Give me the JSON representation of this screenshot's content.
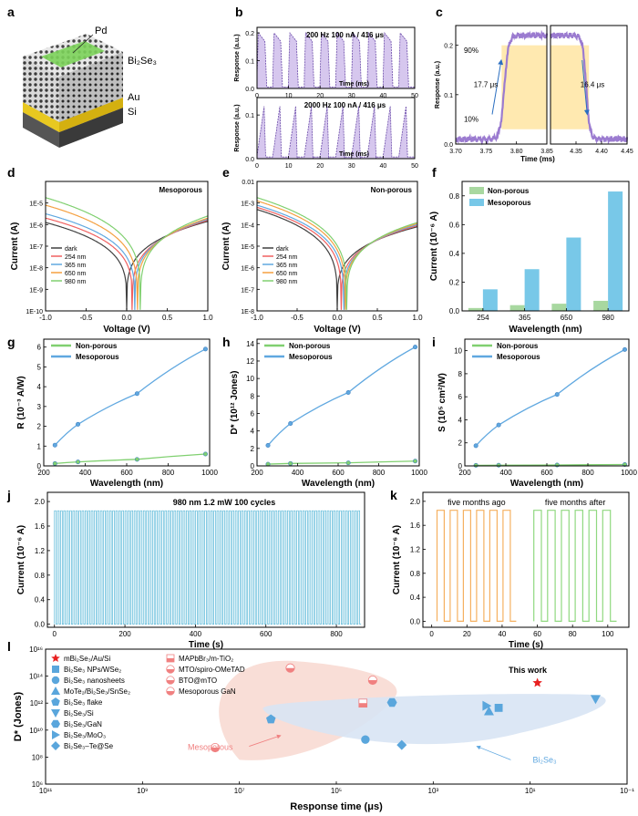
{
  "panel_letters": [
    "a",
    "b",
    "c",
    "d",
    "e",
    "f",
    "g",
    "h",
    "i",
    "j",
    "k",
    "l"
  ],
  "colors": {
    "purple": "#9B7BD0",
    "purple_fill": "#C8B4E8",
    "dark": "#404040",
    "red": "#F06060",
    "blue": "#60A8E0",
    "orange": "#F5A040",
    "green": "#80D070",
    "cyan_bar": "#78C8E8",
    "lightgreen_bar": "#A8D8A0",
    "k_orange": "#F5B060",
    "k_green": "#90D880",
    "pink_region": "#F8D8D0",
    "blue_region": "#D8E4F4",
    "star": "#E82020",
    "band": "#FFE9B0"
  },
  "panel_a": {
    "labels": {
      "pd": "Pd",
      "bi2se3": "Bi₂Se₃",
      "au": "Au",
      "si": "Si"
    }
  },
  "chart_data": [
    {
      "id": "b-top",
      "type": "line",
      "annotation": "200 Hz   100 nA / 416 μs",
      "xlabel": "Time (ms)",
      "ylabel": "Response (a.u.)",
      "xlim": [
        0,
        50
      ],
      "ylim": [
        0,
        0.22
      ],
      "xticks": [
        0,
        10,
        20,
        30,
        40,
        50
      ],
      "yticks": [
        0.0,
        0.1,
        0.2
      ],
      "ytick_labels": [
        "0.0",
        "0.1",
        "0.2"
      ],
      "pulse_period_ms": 5,
      "pulse_width_ms": 2.5,
      "amplitude": 0.2
    },
    {
      "id": "b-bottom",
      "type": "line",
      "annotation": "2000 Hz   100 nA / 416 μs",
      "xlabel": "Time (ms)",
      "ylabel": "Response (a.u.)",
      "xlim": [
        0,
        5
      ],
      "ylim": [
        0,
        0.14
      ],
      "xticks": [
        0,
        1,
        2,
        3,
        4,
        5
      ],
      "xtick_labels": [
        "0",
        "10",
        "20",
        "30",
        "40",
        "50"
      ],
      "yticks": [
        0.0,
        0.1
      ],
      "ytick_labels": [
        "0.0",
        "0.1"
      ],
      "pulse_period_ms": 0.5,
      "amplitude": 0.12
    },
    {
      "id": "c",
      "type": "line",
      "xlabel": "Time (ms)",
      "ylabel": "Response (a.u.)",
      "ylim": [
        0,
        0.24
      ],
      "yticks": [
        0.0,
        0.1,
        0.2
      ],
      "ytick_labels": [
        "0.0",
        "0.1",
        "0.2"
      ],
      "left": {
        "xlim": [
          3.7,
          3.85
        ],
        "xticks": [
          "3.70",
          "3.75",
          "3.80",
          "3.85"
        ],
        "rise_us": "17.7 μs",
        "edge_ms": 3.78
      },
      "right": {
        "xlim": [
          4.3,
          4.45
        ],
        "xticks": [
          "4.35",
          "4.40",
          "4.45"
        ],
        "fall_us": "16.4 μs",
        "edge_ms": 4.37
      },
      "band_labels": [
        "90%",
        "10%"
      ],
      "low": 0.01,
      "high": 0.22
    },
    {
      "id": "d",
      "type": "line",
      "yscale": "log",
      "title": "Mesoporous",
      "xlabel": "Voltage (V)",
      "ylabel": "Current (A)",
      "xlim": [
        -1.0,
        1.0
      ],
      "ylim_exp": [
        -10,
        -4
      ],
      "xticks": [
        "-1.0",
        "-0.5",
        "0.0",
        "0.5",
        "1.0"
      ],
      "ytick_labels": [
        "1E-10",
        "1E-9",
        "1E-8",
        "1E-7",
        "1E-6",
        "1E-5"
      ],
      "series": [
        {
          "name": "dark",
          "color": "#404040",
          "zero_v": 0.0,
          "left_exp": -5.9,
          "right_exp": -5.85
        },
        {
          "name": "254 nm",
          "color": "#F06060",
          "zero_v": 0.07,
          "left_exp": -5.7,
          "right_exp": -5.8
        },
        {
          "name": "365 nm",
          "color": "#60A8E0",
          "zero_v": 0.1,
          "left_exp": -5.5,
          "right_exp": -5.75
        },
        {
          "name": "650 nm",
          "color": "#F5A040",
          "zero_v": 0.13,
          "left_exp": -5.1,
          "right_exp": -5.7
        },
        {
          "name": "980 nm",
          "color": "#80D070",
          "zero_v": 0.17,
          "left_exp": -4.75,
          "right_exp": -5.6
        }
      ]
    },
    {
      "id": "e",
      "type": "line",
      "yscale": "log",
      "title": "Non-porous",
      "xlabel": "Voltage (V)",
      "ylabel": "Current (A)",
      "xlim": [
        -1.0,
        1.0
      ],
      "ylim_exp": [
        -8,
        -2
      ],
      "xticks": [
        "-1.0",
        "-0.5",
        "0.0",
        "0.5",
        "1.0"
      ],
      "ytick_labels": [
        "1E-8",
        "1E-7",
        "1E-6",
        "1E-5",
        "1E-4",
        "1E-3",
        "0.01"
      ],
      "series": [
        {
          "name": "dark",
          "color": "#404040",
          "zero_v": 0.0,
          "left_exp": -3.3,
          "right_exp": -4.1
        },
        {
          "name": "254 nm",
          "color": "#F06060",
          "zero_v": 0.05,
          "left_exp": -3.2,
          "right_exp": -4.05
        },
        {
          "name": "365 nm",
          "color": "#60A8E0",
          "zero_v": 0.08,
          "left_exp": -3.1,
          "right_exp": -4.0
        },
        {
          "name": "650 nm",
          "color": "#F5A040",
          "zero_v": 0.1,
          "left_exp": -2.9,
          "right_exp": -3.95
        },
        {
          "name": "980 nm",
          "color": "#80D070",
          "zero_v": 0.12,
          "left_exp": -2.75,
          "right_exp": -3.9
        }
      ]
    },
    {
      "id": "f",
      "type": "bar",
      "xlabel": "Wavelength (nm)",
      "ylabel": "Current (10⁻⁶ A)",
      "categories": [
        "254",
        "365",
        "650",
        "980"
      ],
      "ylim": [
        0,
        0.9
      ],
      "yticks": [
        "0.0",
        "0.2",
        "0.4",
        "0.6",
        "0.8"
      ],
      "series": [
        {
          "name": "Non-porous",
          "color": "#A8D8A0",
          "values": [
            0.02,
            0.04,
            0.05,
            0.07
          ]
        },
        {
          "name": "Mesoporous",
          "color": "#78C8E8",
          "values": [
            0.15,
            0.29,
            0.51,
            0.83
          ]
        }
      ]
    },
    {
      "id": "g",
      "type": "line",
      "xlabel": "Wavelength (nm)",
      "ylabel": "R (10⁻³ A/W)",
      "x": [
        254,
        365,
        650,
        980
      ],
      "xlim": [
        200,
        1000
      ],
      "xticks": [
        "200",
        "400",
        "600",
        "800",
        "1000"
      ],
      "ylim": [
        0,
        6.4
      ],
      "yticks": [
        "0",
        "1",
        "2",
        "3",
        "4",
        "5",
        "6"
      ],
      "series": [
        {
          "name": "Non-porous",
          "color": "#80D070",
          "values": [
            0.12,
            0.2,
            0.33,
            0.6
          ]
        },
        {
          "name": "Mesoporous",
          "color": "#60A8E0",
          "values": [
            1.05,
            2.1,
            3.65,
            5.9
          ]
        }
      ]
    },
    {
      "id": "h",
      "type": "line",
      "xlabel": "Wavelength (nm)",
      "ylabel": "D* (10¹² Jones)",
      "x": [
        254,
        365,
        650,
        980
      ],
      "xlim": [
        200,
        1000
      ],
      "xticks": [
        "200",
        "400",
        "600",
        "800",
        "1000"
      ],
      "ylim": [
        0,
        14.5
      ],
      "yticks": [
        "0",
        "2",
        "4",
        "6",
        "8",
        "10",
        "12",
        "14"
      ],
      "series": [
        {
          "name": "Non-porous",
          "color": "#80D070",
          "values": [
            0.2,
            0.28,
            0.35,
            0.55
          ]
        },
        {
          "name": "Mesoporous",
          "color": "#60A8E0",
          "values": [
            2.35,
            4.85,
            8.4,
            13.6
          ]
        }
      ]
    },
    {
      "id": "i",
      "type": "line",
      "xlabel": "Wavelength (nm)",
      "ylabel": "S (10⁵ cm²/W)",
      "x": [
        254,
        365,
        650,
        980
      ],
      "xlim": [
        200,
        1000
      ],
      "xticks": [
        "200",
        "400",
        "600",
        "800",
        "1000"
      ],
      "ylim": [
        0,
        11
      ],
      "yticks": [
        "0",
        "2",
        "4",
        "6",
        "8",
        "10"
      ],
      "series": [
        {
          "name": "Non-porous",
          "color": "#80D070",
          "values": [
            0.05,
            0.06,
            0.08,
            0.12
          ]
        },
        {
          "name": "Mesoporous",
          "color": "#60A8E0",
          "values": [
            1.75,
            3.55,
            6.2,
            10.1
          ]
        }
      ]
    },
    {
      "id": "j",
      "type": "line",
      "annotation": "980 nm    1.2 mW    100 cycles",
      "xlabel": "Time (s)",
      "ylabel": "Current (10⁻⁶ A)",
      "xlim": [
        -20,
        880
      ],
      "xticks": [
        "0",
        "200",
        "400",
        "600",
        "800"
      ],
      "ylim": [
        -0.05,
        2.15
      ],
      "yticks": [
        "0.0",
        "0.4",
        "0.8",
        "1.2",
        "1.6",
        "2.0"
      ],
      "cycles": 100,
      "on_current": 1.85,
      "off_current": 0.0,
      "t_end": 870
    },
    {
      "id": "k",
      "type": "line",
      "xlabel": "Time (s)",
      "ylabel": "Current (10⁻⁶ A)",
      "xlim": [
        -5,
        112
      ],
      "xticks": [
        "0",
        "20",
        "40",
        "60",
        "80",
        "100"
      ],
      "ylim": [
        -0.1,
        2.15
      ],
      "yticks": [
        "0.0",
        "0.4",
        "0.8",
        "1.2",
        "1.6",
        "2.0"
      ],
      "on_current": 1.85,
      "series": [
        {
          "name": "five months ago",
          "color": "#F5B060",
          "start": 3,
          "end": 48,
          "pulses": 6
        },
        {
          "name": "five months after",
          "color": "#90D880",
          "start": 58,
          "end": 105,
          "pulses": 6
        }
      ]
    },
    {
      "id": "l",
      "type": "scatter",
      "xscale": "log",
      "yscale": "log",
      "xlabel": "Response time (μs)",
      "ylabel": "D* (Jones)",
      "x_exp_range": [
        11,
        -1
      ],
      "y_exp_range": [
        6,
        16
      ],
      "xtick_labels": [
        "10¹¹",
        "10⁹",
        "10⁷",
        "10⁵",
        "10³",
        "10¹",
        "10⁻¹"
      ],
      "ytick_labels": [
        "10⁶",
        "10⁸",
        "10¹⁰",
        "10¹²",
        "10¹⁴",
        "10¹⁶"
      ],
      "annotations": {
        "this_work": "This work",
        "mesoporous": "Mesoporous",
        "bi2se3": "Bi₂Se₃"
      },
      "legend_left": [
        {
          "label": "mBi₂Se₃/Au/Si",
          "marker": "star"
        },
        {
          "label": "Bi₂Se₃ NPs/WSe₂",
          "marker": "square"
        },
        {
          "label": "Bi₂Se₃ nanosheets",
          "marker": "circle"
        },
        {
          "label": "MoTe₂/Bi₂Se₃/SnSe₂",
          "marker": "triangle-up"
        },
        {
          "label": "Bi₂Se₃ flake",
          "marker": "pentagon"
        },
        {
          "label": "Bi₂Se₃/Si",
          "marker": "triangle-down"
        },
        {
          "label": "Bi₂Se₃/GaN",
          "marker": "hexagon"
        },
        {
          "label": "Bi₂Se₃/MoO₃",
          "marker": "triangle-right"
        },
        {
          "label": "Bi₂Se₃–Te@Se",
          "marker": "diamond"
        }
      ],
      "legend_right": [
        {
          "label": "MAPbBr₃/m-TiO₂",
          "marker": "half-square"
        },
        {
          "label": "MTO/spiro-OMeTAD",
          "marker": "half-circle"
        },
        {
          "label": "BTO@mTO",
          "marker": "half-circle"
        },
        {
          "label": "Mesoporous GaN",
          "marker": "half-circle"
        }
      ],
      "points": [
        {
          "name": "mBi₂Se₃/Au/Si",
          "marker": "star",
          "x_exp": 0.85,
          "y_exp": 13.5
        },
        {
          "name": "Bi₂Se₃/MoO₃",
          "marker": "triangle-right",
          "x_exp": 1.9,
          "y_exp": 11.8
        },
        {
          "name": "Bi₂Se₃ NPs/WSe₂",
          "marker": "square",
          "x_exp": 1.65,
          "y_exp": 11.65
        },
        {
          "name": "MoTe₂/Bi₂Se₃/SnSe₂",
          "marker": "triangle-up",
          "x_exp": 1.85,
          "y_exp": 11.4
        },
        {
          "name": "Bi₂Se₃/Si",
          "marker": "triangle-down",
          "x_exp": -0.35,
          "y_exp": 12.3
        },
        {
          "name": "Bi₂Se₃ flake",
          "marker": "pentagon",
          "x_exp": 6.35,
          "y_exp": 10.8
        },
        {
          "name": "Bi₂Se₃/GaN",
          "marker": "hexagon",
          "x_exp": 3.85,
          "y_exp": 12.05
        },
        {
          "name": "Bi₂Se₃ nanosheets",
          "marker": "circle",
          "x_exp": 4.4,
          "y_exp": 9.3
        },
        {
          "name": "Bi₂Se₃–Te@Se",
          "marker": "diamond",
          "x_exp": 3.65,
          "y_exp": 8.9
        },
        {
          "name": "MAPbBr₃/m-TiO₂",
          "marker": "half-square",
          "x_exp": 4.45,
          "y_exp": 12.0
        },
        {
          "name": "MTO/spiro-OMeTAD",
          "marker": "half-circle",
          "x_exp": 5.95,
          "y_exp": 14.6
        },
        {
          "name": "BTO@mTO",
          "marker": "half-circle",
          "x_exp": 4.25,
          "y_exp": 13.7
        },
        {
          "name": "Mesoporous GaN",
          "marker": "half-circle",
          "x_exp": 7.5,
          "y_exp": 8.7
        }
      ]
    }
  ]
}
